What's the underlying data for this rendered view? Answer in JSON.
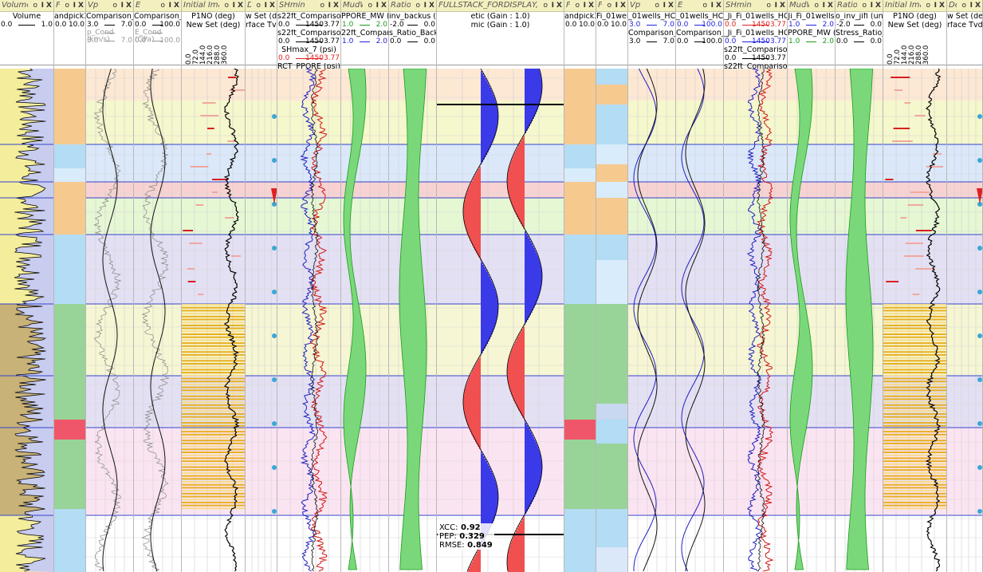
{
  "tracks": [
    {
      "title": "Volume",
      "head": [
        {
          "t": "Volume"
        }
      ],
      "scale": [
        {
          "lo": "0.0",
          "hi": "1.0",
          "color": "#000000"
        }
      ]
    },
    {
      "title": "Fa",
      "head": [
        {
          "t": "andpick3"
        }
      ],
      "scale": [
        {
          "lo": "0.0",
          "hi": "10.0",
          "color": "#000000"
        }
      ]
    },
    {
      "title": "Vp",
      "head": [
        {
          "t": "Comparison_"
        }
      ],
      "scale": [
        {
          "lo": "3.0",
          "hi": "7.0",
          "color": "#000000"
        },
        {
          "lo": "p_Cond (km/s)",
          "hi": "",
          "color": "#999999"
        },
        {
          "lo": "3.0",
          "hi": "7.0",
          "color": "#999999"
        }
      ]
    },
    {
      "title": "E",
      "head": [
        {
          "t": "Comparison_"
        }
      ],
      "scale": [
        {
          "lo": "0.0",
          "hi": "100.0",
          "color": "#000000"
        },
        {
          "lo": "E_Cond (GPa)",
          "hi": "",
          "color": "#999999"
        },
        {
          "lo": "0.0",
          "hi": "100.0",
          "color": "#999999"
        }
      ]
    },
    {
      "title": "Initial Imag",
      "head": [
        {
          "t": "P1NO (deg)"
        },
        {
          "t": "New Set (deg)"
        }
      ],
      "ticks": [
        "0.0",
        "72.0",
        "144.0",
        "216.0",
        "288.0",
        "360.0"
      ]
    },
    {
      "title": "De",
      "head": [
        {
          "t": "w Set (de"
        },
        {
          "t": "rface Tvd"
        }
      ]
    },
    {
      "title": "SHmin",
      "head": [
        {
          "t": "s22ft_Comparison"
        },
        {
          "t": "s22ft_Comparison"
        },
        {
          "t": "SHmax_7 (psi)"
        },
        {
          "t": "RCT_PPORE (psi)"
        }
      ],
      "scale": [
        {
          "lo": "0.0",
          "hi": "14503.77",
          "color": "#000000"
        },
        {
          "lo": "0.0",
          "hi": "14503.77",
          "color": "#000000"
        },
        {
          "lo": "0.0",
          "hi": "14503.77",
          "color": "#e02020"
        }
      ]
    },
    {
      "title": "MudWe",
      "head": [
        {
          "t": "PPORE_MW (g"
        },
        {
          "t": "22ft_Comparisc"
        }
      ],
      "scale": [
        {
          "lo": "1.0",
          "hi": "2.0",
          "color": "#1a9a1a"
        },
        {
          "lo": "1.0",
          "hi": "2.0",
          "color": "#2020e0"
        }
      ]
    },
    {
      "title": "Ratio",
      "head": [
        {
          "t": "inv_backus (un"
        },
        {
          "t": "s_Ratio_Back"
        }
      ],
      "scale": [
        {
          "lo": "-2.0",
          "hi": "0.0",
          "color": "#000000"
        },
        {
          "lo": "0.0",
          "hi": "0.0",
          "color": "#000000"
        }
      ]
    },
    {
      "title": "FULLSTACK_FORDISPLAY,",
      "head": [
        {
          "t": "etic (Gain : 1.0)"
        },
        {
          "t": "mic (Gain : 1.0)"
        }
      ]
    },
    {
      "title": "Fa",
      "head": [
        {
          "t": "andpick3"
        }
      ],
      "scale": [
        {
          "lo": "0.0",
          "hi": "10.0",
          "color": "#000000"
        }
      ]
    },
    {
      "title": "Fa",
      "head": [
        {
          "t": "Fi_01well"
        }
      ],
      "scale": [
        {
          "lo": "0.0",
          "hi": "10.0",
          "color": "#000000"
        }
      ]
    },
    {
      "title": "Vp",
      "head": [
        {
          "t": "_01wells_HCF"
        },
        {
          "t": "Comparison_"
        }
      ],
      "scale": [
        {
          "lo": "3.0",
          "hi": "7.0",
          "color": "#2020e0"
        },
        {
          "lo": "3.0",
          "hi": "7.0",
          "color": "#000000"
        }
      ]
    },
    {
      "title": "E",
      "head": [
        {
          "t": "_01wells_HCF"
        },
        {
          "t": "Comparison_"
        }
      ],
      "scale": [
        {
          "lo": "0.0",
          "hi": "100.0",
          "color": "#2020e0"
        },
        {
          "lo": "0.0",
          "hi": "100.0",
          "color": "#000000"
        }
      ]
    },
    {
      "title": "SHmin",
      "head": [
        {
          "t": "_Ji_Fi_01wells_HC"
        },
        {
          "t": "_Ji_Fi_01wells_HCF"
        },
        {
          "t": "s22ft_Comparison"
        },
        {
          "t": "s22ft_Comparison"
        }
      ],
      "scale": [
        {
          "lo": "0.0",
          "hi": "14503.77",
          "color": "#e02020"
        },
        {
          "lo": "0.0",
          "hi": "14503.77",
          "color": "#2020e0"
        },
        {
          "lo": "0.0",
          "hi": "14503.77",
          "color": "#000000"
        }
      ]
    },
    {
      "title": "MudWe",
      "head": [
        {
          "t": "Ji_Fi_01wells"
        },
        {
          "t": "PPORE_MW (g"
        }
      ],
      "scale": [
        {
          "lo": "1.0",
          "hi": "2.0",
          "color": "#2020e0"
        },
        {
          "lo": "1.0",
          "hi": "2.0",
          "color": "#1a9a1a"
        }
      ]
    },
    {
      "title": "Ratio",
      "head": [
        {
          "t": "o_inv_jifi (unitle"
        },
        {
          "t": "Stress_Ratio_J"
        }
      ],
      "scale": [
        {
          "lo": "-2.0",
          "hi": "0.0",
          "color": "#000000"
        },
        {
          "lo": "0.0",
          "hi": "0.0",
          "color": "#000000"
        }
      ]
    },
    {
      "title": "Initial Imag",
      "head": [
        {
          "t": "P1NO (deg)"
        },
        {
          "t": "New Set (deg)"
        }
      ],
      "ticks": [
        "0.0",
        "72.0",
        "144.0",
        "216.0",
        "288.0",
        "360.0"
      ]
    },
    {
      "title": "De",
      "head": [
        {
          "t": "w Set (de"
        },
        {
          "t": "rface Tvd"
        }
      ]
    }
  ],
  "btn": {
    "o": "o",
    "i": "I",
    "x": "X"
  },
  "stats": {
    "xcc_label": "XCC:",
    "xcc": "0.92",
    "pep_label": "PEP:",
    "pep": "0.329",
    "rmse_label": "RMSE:",
    "rmse": "0.849"
  },
  "colors": {
    "title_bg": "#f3efbf",
    "orange": "#f6c98f",
    "light_blue": "#b3dcf5",
    "green": "#98d398",
    "red": "#f0566a",
    "blue_line": "#3344cc"
  }
}
